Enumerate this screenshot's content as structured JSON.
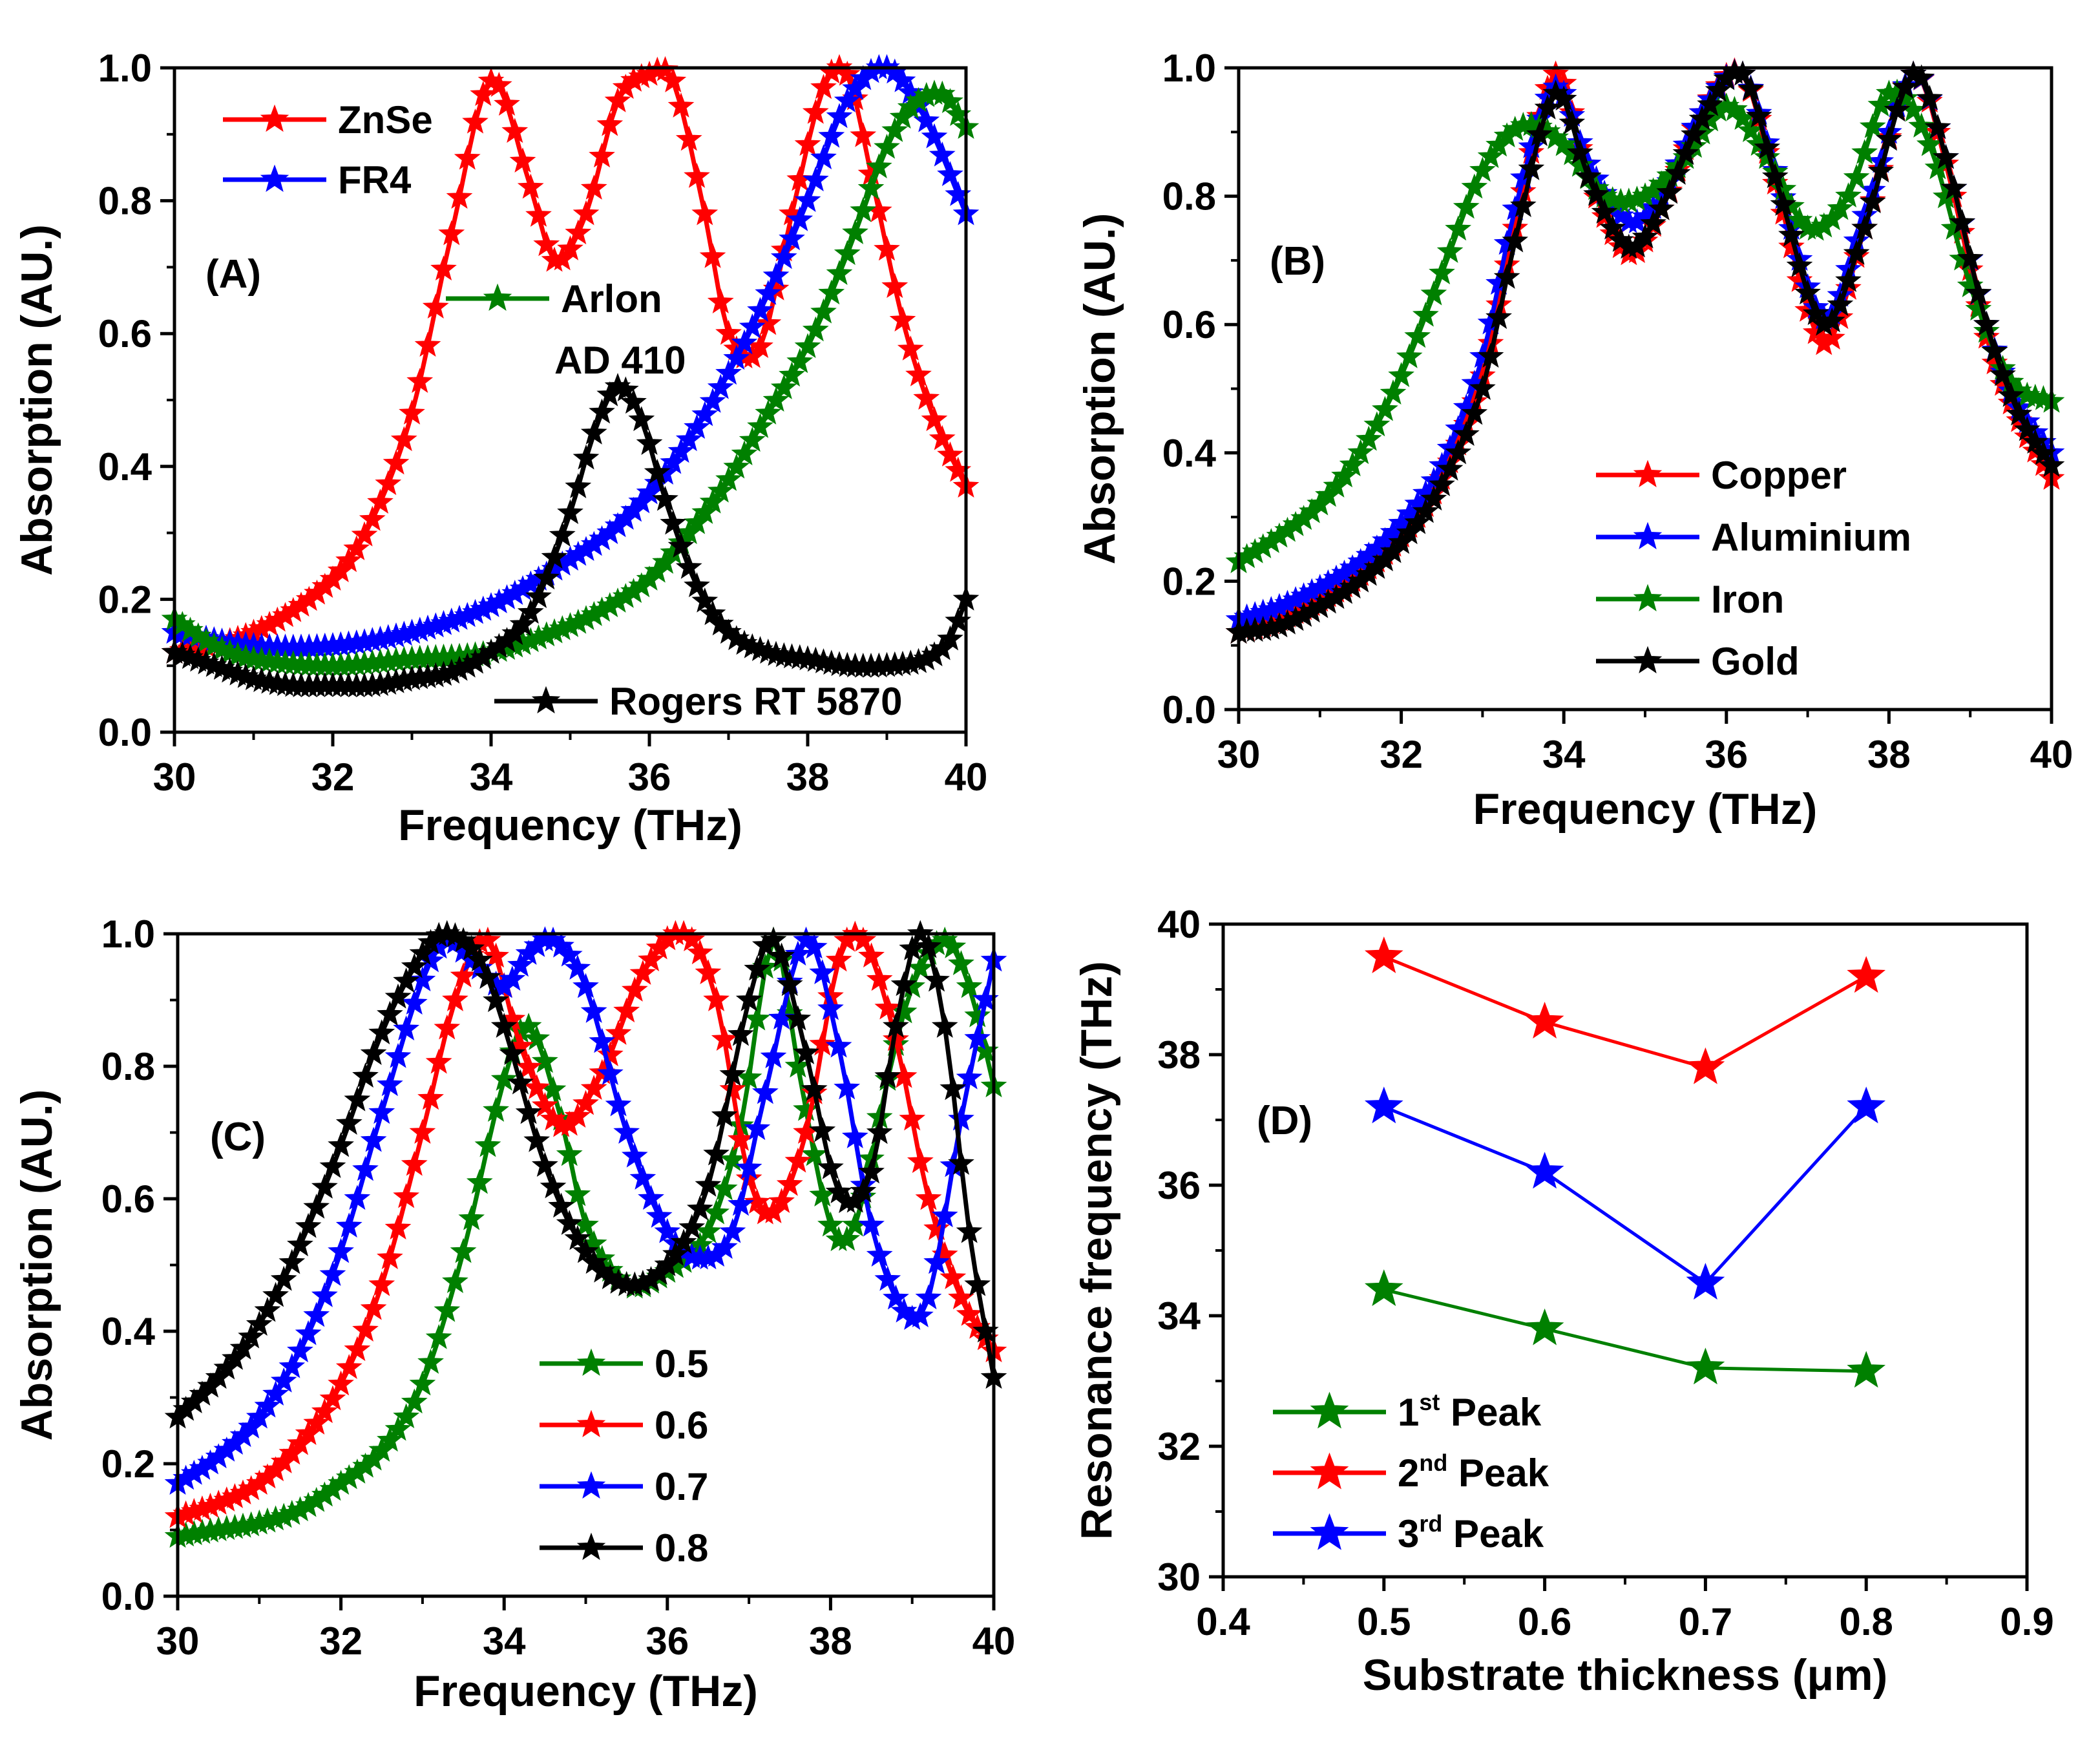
{
  "chart_data": [
    {
      "panel": "(A)",
      "type": "line",
      "xlabel": "Frequency (THz)",
      "ylabel": "Absorption (AU.)",
      "xlim": [
        30,
        40
      ],
      "ylim": [
        0,
        1
      ],
      "xticks": [
        30,
        32,
        34,
        36,
        38,
        40
      ],
      "yticks": [
        0.0,
        0.2,
        0.4,
        0.6,
        0.8,
        1.0
      ],
      "marker": "star",
      "legend_position": "top-left",
      "series": [
        {
          "name": "ZnSe",
          "color": "#ff0000",
          "x": [
            30,
            31,
            32,
            32.5,
            33,
            33.5,
            34,
            34.5,
            34.8,
            35.2,
            35.6,
            36,
            36.3,
            36.7,
            37,
            37.4,
            37.8,
            38.2,
            38.5,
            38.8,
            39.2,
            39.6,
            40
          ],
          "y": [
            0.12,
            0.15,
            0.23,
            0.32,
            0.48,
            0.75,
            0.98,
            0.82,
            0.71,
            0.78,
            0.95,
            0.99,
            0.98,
            0.78,
            0.6,
            0.58,
            0.78,
            0.97,
            0.99,
            0.84,
            0.62,
            0.47,
            0.37
          ]
        },
        {
          "name": "FR4",
          "color": "#0000ff",
          "x": [
            30,
            31,
            32,
            33,
            34,
            35,
            35.5,
            36,
            36.5,
            37,
            37.5,
            38,
            38.5,
            39,
            39.5,
            40
          ],
          "y": [
            0.15,
            0.13,
            0.13,
            0.15,
            0.19,
            0.26,
            0.3,
            0.36,
            0.44,
            0.54,
            0.66,
            0.8,
            0.95,
            1.0,
            0.92,
            0.78
          ]
        },
        {
          "name": "Arlon\nAD 410",
          "label_lines": [
            "Arlon",
            "AD 410"
          ],
          "color": "#008000",
          "x": [
            30,
            30.5,
            31,
            32,
            33,
            34,
            35,
            35.5,
            36,
            36.5,
            37,
            37.5,
            38,
            38.5,
            39,
            39.3,
            39.7,
            40
          ],
          "y": [
            0.17,
            0.13,
            0.11,
            0.1,
            0.11,
            0.12,
            0.16,
            0.19,
            0.23,
            0.3,
            0.38,
            0.48,
            0.58,
            0.72,
            0.88,
            0.94,
            0.96,
            0.91
          ]
        },
        {
          "name": "Rogers RT 5870",
          "color": "#000000",
          "x": [
            30,
            30.5,
            31,
            31.5,
            32,
            32.5,
            33,
            33.5,
            34,
            34.5,
            35,
            35.3,
            35.6,
            35.9,
            36.2,
            36.6,
            37,
            37.5,
            38,
            38.5,
            39,
            39.5,
            39.8,
            40
          ],
          "y": [
            0.12,
            0.1,
            0.08,
            0.07,
            0.07,
            0.07,
            0.08,
            0.09,
            0.12,
            0.18,
            0.33,
            0.45,
            0.52,
            0.47,
            0.35,
            0.22,
            0.15,
            0.12,
            0.11,
            0.1,
            0.1,
            0.11,
            0.14,
            0.2
          ]
        }
      ],
      "annotations": []
    },
    {
      "panel": "(B)",
      "type": "line",
      "xlabel": "Frequency (THz)",
      "ylabel": "Absorption (AU.)",
      "xlim": [
        30,
        40
      ],
      "ylim": [
        0,
        1
      ],
      "xticks": [
        30,
        32,
        34,
        36,
        38,
        40
      ],
      "yticks": [
        0.0,
        0.2,
        0.4,
        0.6,
        0.8,
        1.0
      ],
      "marker": "star",
      "legend_position": "lower-right",
      "series": [
        {
          "name": "Copper",
          "color": "#ff0000",
          "x": [
            30,
            30.5,
            31,
            31.5,
            32,
            32.5,
            33,
            33.4,
            33.9,
            34.3,
            34.8,
            35.2,
            35.7,
            36.2,
            36.6,
            37.2,
            37.7,
            38.3,
            38.7,
            39.2,
            39.6,
            40
          ],
          "y": [
            0.12,
            0.14,
            0.17,
            0.21,
            0.27,
            0.36,
            0.52,
            0.75,
            0.99,
            0.83,
            0.71,
            0.78,
            0.93,
            0.99,
            0.82,
            0.57,
            0.75,
            0.99,
            0.85,
            0.58,
            0.45,
            0.36
          ]
        },
        {
          "name": "Aluminium",
          "color": "#0000ff",
          "x": [
            30,
            30.5,
            31,
            31.5,
            32,
            32.5,
            33,
            33.4,
            33.9,
            34.3,
            34.8,
            35.2,
            35.7,
            36.2,
            36.6,
            37.2,
            37.7,
            38.3,
            38.7,
            39.2,
            39.6,
            40
          ],
          "y": [
            0.14,
            0.16,
            0.19,
            0.23,
            0.29,
            0.38,
            0.55,
            0.78,
            0.97,
            0.85,
            0.76,
            0.8,
            0.93,
            0.99,
            0.84,
            0.61,
            0.77,
            0.99,
            0.86,
            0.6,
            0.47,
            0.4
          ]
        },
        {
          "name": "Iron",
          "color": "#008000",
          "x": [
            30,
            30.5,
            31,
            31.5,
            32,
            32.5,
            33,
            33.5,
            34,
            34.5,
            35,
            35.5,
            36,
            36.5,
            37,
            37.5,
            38,
            38.5,
            39,
            39.5,
            40
          ],
          "y": [
            0.23,
            0.27,
            0.32,
            0.4,
            0.52,
            0.68,
            0.84,
            0.91,
            0.88,
            0.8,
            0.8,
            0.86,
            0.94,
            0.86,
            0.75,
            0.8,
            0.96,
            0.88,
            0.66,
            0.51,
            0.48
          ]
        },
        {
          "name": "Gold",
          "color": "#000000",
          "x": [
            30,
            30.5,
            31,
            31.5,
            32,
            32.5,
            33,
            33.4,
            33.9,
            34.3,
            34.8,
            35.2,
            35.7,
            36.2,
            36.6,
            37.2,
            37.7,
            38.3,
            38.7,
            39.2,
            39.6,
            40
          ],
          "y": [
            0.12,
            0.13,
            0.16,
            0.2,
            0.26,
            0.35,
            0.5,
            0.73,
            0.96,
            0.83,
            0.72,
            0.78,
            0.92,
            0.99,
            0.83,
            0.6,
            0.75,
            0.99,
            0.86,
            0.6,
            0.46,
            0.38
          ]
        }
      ],
      "annotations": []
    },
    {
      "panel": "(C)",
      "type": "line",
      "xlabel": "Frequency (THz)",
      "ylabel": "Absorption (AU.)",
      "xlim": [
        30,
        40
      ],
      "ylim": [
        0,
        1
      ],
      "xticks": [
        30,
        32,
        34,
        36,
        38,
        40
      ],
      "yticks": [
        0.0,
        0.2,
        0.4,
        0.6,
        0.8,
        1.0
      ],
      "marker": "star",
      "legend_position": "lower-center",
      "series": [
        {
          "name": "0.5",
          "color": "#008000",
          "x": [
            30,
            30.5,
            31,
            31.5,
            32,
            32.5,
            33,
            33.5,
            34,
            34.3,
            34.7,
            35,
            35.5,
            36,
            36.5,
            36.9,
            37.3,
            37.6,
            38,
            38.3,
            38.7,
            39,
            39.4,
            39.7,
            40
          ],
          "y": [
            0.09,
            0.1,
            0.11,
            0.13,
            0.17,
            0.22,
            0.32,
            0.52,
            0.78,
            0.86,
            0.72,
            0.56,
            0.47,
            0.49,
            0.55,
            0.71,
            0.99,
            0.8,
            0.56,
            0.56,
            0.78,
            0.92,
            0.99,
            0.92,
            0.77
          ]
        },
        {
          "name": "0.6",
          "color": "#ff0000",
          "x": [
            30,
            30.5,
            31,
            31.5,
            32,
            32.5,
            33,
            33.4,
            33.8,
            34.2,
            34.7,
            35.2,
            35.7,
            36.2,
            36.6,
            37,
            37.3,
            37.7,
            38.1,
            38.4,
            38.8,
            39.2,
            39.6,
            40
          ],
          "y": [
            0.12,
            0.14,
            0.17,
            0.23,
            0.32,
            0.47,
            0.7,
            0.9,
            0.99,
            0.83,
            0.71,
            0.79,
            0.94,
            1.0,
            0.9,
            0.63,
            0.58,
            0.7,
            0.96,
            0.99,
            0.84,
            0.6,
            0.45,
            0.37
          ]
        },
        {
          "name": "0.7",
          "color": "#0000ff",
          "x": [
            30,
            30.5,
            31,
            31.5,
            32,
            32.5,
            33,
            33.3,
            33.6,
            34,
            34.3,
            34.6,
            35,
            35.5,
            36,
            36.4,
            36.8,
            37.2,
            37.7,
            38.1,
            38.5,
            38.9,
            39.2,
            39.6,
            40
          ],
          "y": [
            0.17,
            0.21,
            0.27,
            0.37,
            0.52,
            0.73,
            0.93,
            0.99,
            0.96,
            0.92,
            0.97,
            0.99,
            0.92,
            0.7,
            0.55,
            0.51,
            0.55,
            0.76,
            0.99,
            0.83,
            0.56,
            0.43,
            0.45,
            0.72,
            0.96
          ]
        },
        {
          "name": "0.8",
          "color": "#000000",
          "x": [
            30,
            30.5,
            31,
            31.5,
            32,
            32.5,
            33,
            33.3,
            33.7,
            34,
            34.5,
            35,
            35.5,
            36,
            36.5,
            37,
            37.3,
            37.7,
            38.1,
            38.5,
            38.8,
            39.1,
            39.4,
            39.7,
            40
          ],
          "y": [
            0.27,
            0.33,
            0.41,
            0.53,
            0.68,
            0.85,
            0.97,
            1.0,
            0.96,
            0.86,
            0.65,
            0.52,
            0.47,
            0.5,
            0.62,
            0.9,
            0.99,
            0.82,
            0.61,
            0.64,
            0.86,
            1.0,
            0.86,
            0.55,
            0.33
          ]
        }
      ],
      "annotations": []
    },
    {
      "panel": "(D)",
      "type": "line",
      "xlabel": "Substrate thickness (μm)",
      "ylabel": "Resonance frequency (THz)",
      "xlim": [
        0.4,
        0.9
      ],
      "ylim": [
        30,
        40
      ],
      "xticks": [
        0.4,
        0.5,
        0.6,
        0.7,
        0.8,
        0.9
      ],
      "yticks": [
        30,
        32,
        34,
        36,
        38,
        40
      ],
      "marker": "star",
      "legend_position": "lower-left",
      "series": [
        {
          "name": "1st Peak",
          "base": "1",
          "sup": "st",
          "rest": " Peak",
          "color": "#008000",
          "x": [
            0.5,
            0.6,
            0.7,
            0.8
          ],
          "y": [
            34.4,
            33.8,
            33.2,
            33.15
          ]
        },
        {
          "name": "2nd Peak",
          "base": "2",
          "sup": "nd",
          "rest": " Peak",
          "color": "#ff0000",
          "x": [
            0.5,
            0.6,
            0.7,
            0.8
          ],
          "y": [
            39.5,
            38.5,
            37.8,
            39.2
          ]
        },
        {
          "name": "3rd Peak",
          "base": "3",
          "sup": "rd",
          "rest": " Peak",
          "color": "#0000ff",
          "x": [
            0.5,
            0.6,
            0.7,
            0.8
          ],
          "y": [
            37.2,
            36.2,
            34.5,
            37.2
          ]
        }
      ],
      "annotations": []
    }
  ]
}
